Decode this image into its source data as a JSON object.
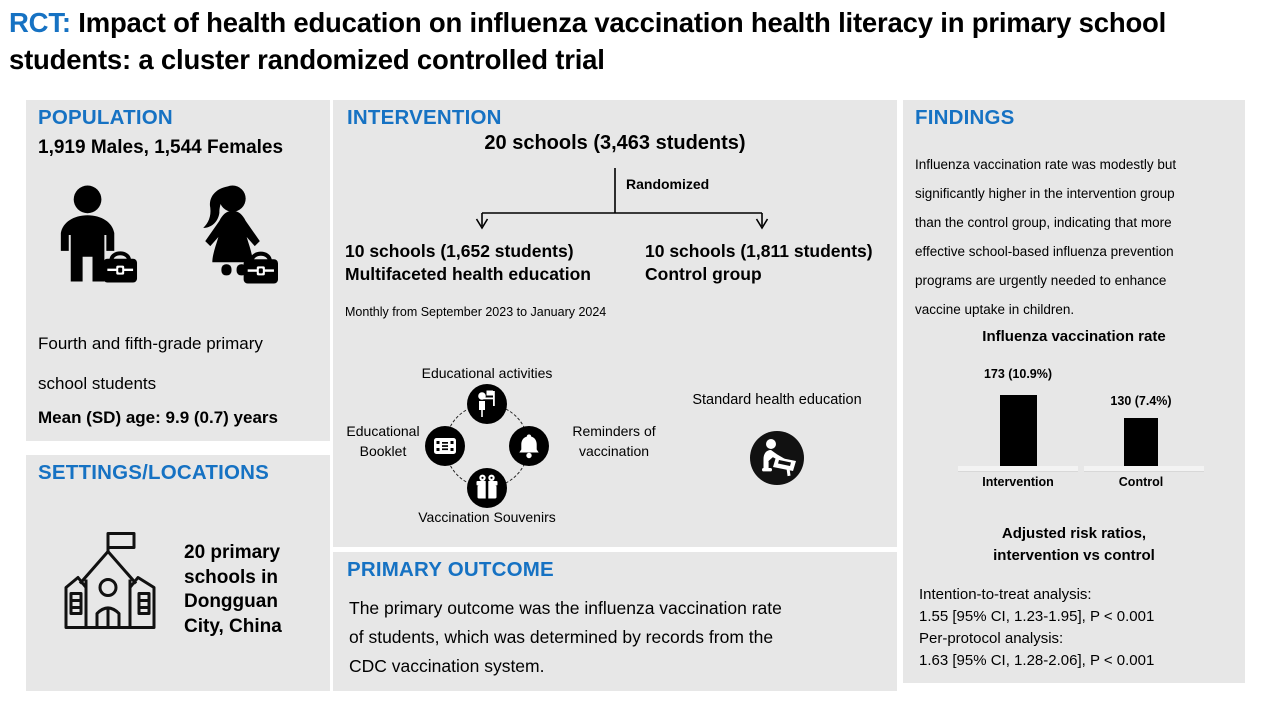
{
  "colors": {
    "accent_blue": "#1672c3",
    "panel_bg": "#e7e7e7",
    "bar_black": "#000000"
  },
  "title": {
    "prefix": "RCT:",
    "main": " Impact of health education on influenza vaccination health literacy in primary school students: a cluster randomized controlled trial"
  },
  "population": {
    "header": "POPULATION",
    "counts": "1,919 Males, 1,544 Females",
    "icons": [
      "male-student-icon",
      "female-student-icon"
    ],
    "description": "Fourth and fifth-grade primary\nschool students",
    "age": "Mean (SD) age: 9.9 (0.7) years"
  },
  "settings": {
    "header": "SETTINGS/LOCATIONS",
    "icon": "school-building-icon",
    "location": "20 primary\nschools in\nDongguan\nCity, China"
  },
  "intervention": {
    "header": "INTERVENTION",
    "total": "20 schools (3,463 students)",
    "randomized_label": "Randomized",
    "arm_intervention": {
      "line1": "10 schools (1,652 students)",
      "line2": "Multifaceted health education"
    },
    "arm_control": {
      "line1": "10 schools (1,811 students)",
      "line2": "Control group"
    },
    "schedule": "Monthly from September 2023 to January 2024",
    "components": [
      {
        "label": "Educational activities",
        "icon": "teacher-presentation-icon"
      },
      {
        "label": "Reminders of\nvaccination",
        "icon": "reminder-bell-icon"
      },
      {
        "label": "Vaccination Souvenirs",
        "icon": "gift-icon"
      },
      {
        "label": "Educational\nBooklet",
        "icon": "booklet-icon"
      }
    ],
    "control_label": "Standard health education",
    "control_icon": "student-at-desk-icon"
  },
  "primary_outcome": {
    "header": "PRIMARY OUTCOME",
    "text": "The primary outcome was the influenza vaccination rate\nof students, which was determined by records from the\nCDC vaccination system."
  },
  "findings": {
    "header": "FINDINGS",
    "summary": "Influenza vaccination rate was modestly but\nsignificantly higher in the intervention group\nthan the control group, indicating that more\neffective school-based influenza prevention\nprograms are urgently needed to enhance\nvaccine uptake in children.",
    "risk_header": "Adjusted risk ratios,\nintervention vs control",
    "analyses": [
      {
        "label": "Intention-to-treat analysis:",
        "value": "1.55 [95% CI, 1.23-1.95], P < 0.001"
      },
      {
        "label": "Per-protocol analysis:",
        "value": "1.63 [95% CI, 1.28-2.06], P < 0.001"
      }
    ]
  },
  "chart_data": {
    "type": "bar",
    "title": "Influenza vaccination rate",
    "categories": [
      "Intervention",
      "Control"
    ],
    "values": [
      173,
      130
    ],
    "percentages": [
      10.9,
      7.4
    ],
    "data_labels": [
      "173 (10.9%)",
      "130 (7.4%)"
    ],
    "bar_color": "#000000",
    "xlabel": "",
    "ylabel": "",
    "grid": false,
    "legend": false,
    "ylim_percent": [
      0,
      11.5
    ]
  }
}
